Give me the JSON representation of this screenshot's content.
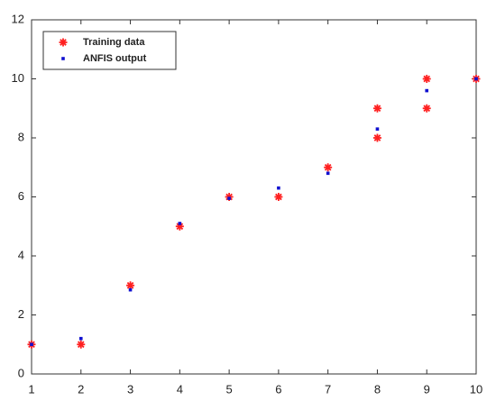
{
  "chart_data": {
    "type": "scatter",
    "series": [
      {
        "name": "Training data",
        "color": "#ff2020",
        "marker": "asterisk",
        "x": [
          1,
          2,
          3,
          4,
          5,
          6,
          7,
          8,
          8,
          9,
          9,
          10
        ],
        "values": [
          1,
          1,
          3,
          5,
          6,
          6,
          7,
          8,
          9,
          9,
          10,
          10
        ]
      },
      {
        "name": "ANFIS output",
        "color": "#1010d0",
        "marker": "dot",
        "x": [
          1,
          2,
          3,
          4,
          5,
          6,
          7,
          8,
          9,
          10
        ],
        "values": [
          1,
          1.2,
          2.85,
          5.1,
          5.95,
          6.3,
          6.8,
          8.3,
          9.6,
          10
        ]
      }
    ],
    "xlim": [
      1,
      10
    ],
    "xticks": [
      1,
      2,
      3,
      4,
      5,
      6,
      7,
      8,
      9,
      10
    ],
    "ylim": [
      0,
      12
    ],
    "yticks": [
      0,
      2,
      4,
      6,
      8,
      10,
      12
    ],
    "grid": false,
    "legend": "upper left"
  }
}
